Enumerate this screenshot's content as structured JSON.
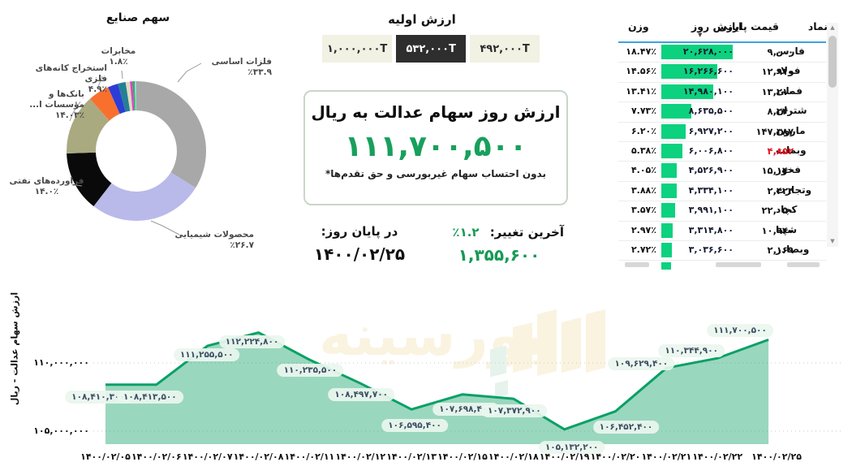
{
  "colors": {
    "accent_green": "#17a05c",
    "table_bar_green": "#0cd17e",
    "negative_red": "#e8101c",
    "header_line_blue": "#3da2e0",
    "chart_line": "#0aa066",
    "chart_fill": "#8fd6b6",
    "button_bg": "#f1f1e4",
    "button_selected_bg": "#2e2e2e"
  },
  "chart_data": [
    {
      "type": "pie",
      "title": "سهم صنایع",
      "legend_position": "around",
      "slices": [
        {
          "label": "فلزات اساسی",
          "pct_label": "۳۳.۹٪",
          "value": 33.9,
          "color": "#a8a8a8"
        },
        {
          "label": "محصولات شیمیایی",
          "pct_label": "۲۶.۷٪",
          "value": 26.7,
          "color": "#b9b9ea"
        },
        {
          "label": "فراورده‌های نفتی",
          "pct_label": "۱۴.۰٪",
          "value": 14.0,
          "color": "#0a0a0a"
        },
        {
          "label": "بانک‌ها و مؤسسات ا...",
          "pct_label": "۱۴.۰۳٪",
          "value": 14.03,
          "color": "#a9aa80"
        },
        {
          "label": "استخراج کانه‌های فلزی",
          "pct_label": "۴.۹٪",
          "value": 4.9,
          "color": "#f9702e"
        },
        {
          "label": "",
          "pct_label": "",
          "value": 2.4,
          "color": "#2b3dd6"
        },
        {
          "label": "مخابرات",
          "pct_label": "۱.۸٪",
          "value": 1.8,
          "color": "#257f95"
        },
        {
          "label": "",
          "pct_label": "",
          "value": 1.0,
          "color": "#dddcc0"
        },
        {
          "label": "",
          "pct_label": "",
          "value": 0.6,
          "color": "#e93ccc"
        },
        {
          "label": "",
          "pct_label": "",
          "value": 0.5,
          "color": "#2eb64d"
        },
        {
          "label": "",
          "pct_label": "",
          "value": 0.37,
          "color": "#8ed7e6"
        }
      ]
    },
    {
      "type": "area",
      "ylabel": "ارزش سهام عدالت - ریال",
      "grid": "dotted",
      "ylim": [
        104200000,
        113600000
      ],
      "x": [
        "۱۴۰۰/۰۲/۰۵",
        "۱۴۰۰/۰۲/۰۶",
        "۱۴۰۰/۰۲/۰۷",
        "۱۴۰۰/۰۲/۰۸",
        "۱۴۰۰/۰۲/۱۱",
        "۱۴۰۰/۰۲/۱۲",
        "۱۴۰۰/۰۲/۱۳",
        "۱۴۰۰/۰۲/۱۵",
        "۱۴۰۰/۰۲/۱۸",
        "۱۴۰۰/۰۲/۱۹",
        "۱۴۰۰/۰۲/۲۰",
        "۱۴۰۰/۰۲/۲۱",
        "۱۴۰۰/۰۲/۲۲",
        "۱۴۰۰/۰۲/۲۵"
      ],
      "values": [
        108410300,
        108413500,
        111255500,
        112224800,
        110235500,
        108497700,
        106595400,
        107698400,
        107372900,
        105132200,
        106452400,
        109629400,
        110344900,
        111700500
      ],
      "point_labels": [
        "۱۰۸,۴۱۰,۳۰۰",
        "۱۰۸,۴۱۳,۵۰۰",
        "۱۱۱,۲۵۵,۵۰۰",
        "۱۱۲,۲۲۴,۸۰۰",
        "۱۱۰,۲۳۵,۵۰۰",
        "۱۰۸,۴۹۷,۷۰۰",
        "۱۰۶,۵۹۵,۴۰۰",
        "۱۰۷,۶۹۸,۴۰۰",
        "۱۰۷,۳۷۲,۹۰۰",
        "۱۰۵,۱۳۲,۲۰۰",
        "۱۰۶,۴۵۲,۴۰۰",
        "۱۰۹,۶۲۹,۴۰۰",
        "۱۱۰,۳۴۴,۹۰۰",
        "۱۱۱,۷۰۰,۵۰۰"
      ],
      "yticks": [
        {
          "label": "۱۱۰,۰۰۰,۰۰۰",
          "value": 110000000
        },
        {
          "label": "۱۰۵,۰۰۰,۰۰۰",
          "value": 105000000
        }
      ]
    }
  ],
  "initial_value": {
    "title": "ارزش اولیه",
    "options": [
      {
        "label": "۴۹۲,۰۰۰T",
        "selected": false
      },
      {
        "label": "۵۳۲,۰۰۰T",
        "selected": true
      },
      {
        "label": "۱,۰۰۰,۰۰۰T",
        "selected": false
      }
    ]
  },
  "value_box": {
    "title": "ارزش روز سهام عدالت به ریال",
    "value": "۱۱۱,۷۰۰,۵۰۰",
    "footnote": "*بدون احتساب سهام غیربورسی و حق تقدم‌ها"
  },
  "change": {
    "label": "آخرین تغییر:",
    "pct": "۱.۲٪",
    "amount": "۱,۳۵۵,۶۰۰"
  },
  "end_of_day": {
    "label": "در پایان روز:",
    "date": "۱۴۰۰/۰۲/۲۵"
  },
  "table": {
    "headers": {
      "symbol": "نماد",
      "close": "قیمت پایانی",
      "day_value": "ارزش روز",
      "weight": "وزن"
    },
    "sort_icon": "▼",
    "max_day_value": 20628000,
    "rows": [
      {
        "symbol": "فارس",
        "close": "۹,۰۰۰",
        "close_red": false,
        "day_value": "۲۰,۶۲۸,۰۰۰",
        "day_value_num": 20628000,
        "weight": "۱۸.۴۷٪"
      },
      {
        "symbol": "فولاد",
        "close": "۱۲,۹۱۰",
        "close_red": false,
        "day_value": "۱۶,۲۶۶,۶۰۰",
        "day_value_num": 16266600,
        "weight": "۱۴.۵۶٪"
      },
      {
        "symbol": "فملی",
        "close": "۱۳,۲۱۰",
        "close_red": false,
        "day_value": "۱۴,۹۸۰,۱۰۰",
        "day_value_num": 14980100,
        "weight": "۱۳.۴۱٪"
      },
      {
        "symbol": "شتران",
        "close": "۸,۲۴۰",
        "close_red": false,
        "day_value": "۸,۶۳۵,۵۰۰",
        "day_value_num": 8635500,
        "weight": "۷.۷۳٪"
      },
      {
        "symbol": "مارون",
        "close": "۱۴۷,۳۸۷",
        "close_red": false,
        "day_value": "۶,۹۲۷,۲۰۰",
        "day_value_num": 6927200,
        "weight": "۶.۲۰٪"
      },
      {
        "symbol": "وبملت",
        "close": "۴,۸۵۲",
        "close_red": true,
        "day_value": "۶,۰۰۶,۸۰۰",
        "day_value_num": 6006800,
        "weight": "۵.۳۸٪"
      },
      {
        "symbol": "فخوز",
        "close": "۱۵,۱۴۰",
        "close_red": false,
        "day_value": "۴,۵۲۶,۹۰۰",
        "day_value_num": 4526900,
        "weight": "۴.۰۵٪"
      },
      {
        "symbol": "وتجارت",
        "close": "۲,۴۲۴",
        "close_red": false,
        "day_value": "۴,۳۳۴,۱۰۰",
        "day_value_num": 4334100,
        "weight": "۳.۸۸٪"
      },
      {
        "symbol": "کچاد",
        "close": "۲۲,۰۵۰",
        "close_red": false,
        "day_value": "۳,۹۹۱,۱۰۰",
        "day_value_num": 3991100,
        "weight": "۳.۵۷٪"
      },
      {
        "symbol": "شپنا",
        "close": "۱۰,۹۴۰",
        "close_red": false,
        "day_value": "۳,۳۱۴,۸۰۰",
        "day_value_num": 3314800,
        "weight": "۲.۹۷٪"
      },
      {
        "symbol": "وبصادر",
        "close": "۲,۱۶۹",
        "close_red": false,
        "day_value": "۳,۰۳۶,۶۰۰",
        "day_value_num": 3036600,
        "weight": "۲.۷۲٪"
      }
    ]
  },
  "watermark": {
    "text": "بورسینه"
  }
}
